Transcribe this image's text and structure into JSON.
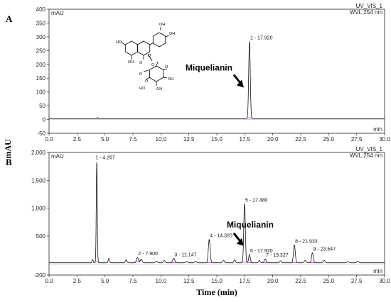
{
  "figure": {
    "ylabel": "mAU",
    "xlabel": "Time (min)"
  },
  "chart_data": [
    {
      "type": "line",
      "panel_label": "A",
      "unit_top_left": "mAU",
      "unit_bottom_right": "min",
      "header_line1": "UV_VIS_1",
      "header_line2": "WVL:254 nm",
      "xlim": [
        0.0,
        30.0
      ],
      "ylim": [
        -50,
        400
      ],
      "x_ticks": [
        "0.0",
        "2.5",
        "5.0",
        "7.5",
        "10.0",
        "12.5",
        "15.0",
        "17.5",
        "20.0",
        "22.5",
        "25.0",
        "27.5",
        "30.0"
      ],
      "y_ticks": [
        {
          "value": -50,
          "label": "-50"
        },
        {
          "value": 0,
          "label": "0"
        },
        {
          "value": 50,
          "label": "50"
        },
        {
          "value": 100,
          "label": "100"
        },
        {
          "value": 150,
          "label": "150"
        },
        {
          "value": 200,
          "label": "200"
        },
        {
          "value": 250,
          "label": "250"
        },
        {
          "value": 300,
          "label": "300"
        },
        {
          "value": 350,
          "label": "350"
        },
        {
          "value": 400,
          "label": "400"
        }
      ],
      "baseline": 3,
      "peaks": [
        {
          "label": "1 - 17.920",
          "rt": 17.92,
          "height": 280,
          "width": 0.07
        }
      ],
      "minor_peaks": [
        {
          "rt": 4.35,
          "height": 5,
          "width": 0.03
        }
      ],
      "annotation": {
        "text": "Miquelianin",
        "rt": 17.92,
        "height": 280
      },
      "structure_labels": [
        "OH",
        "OH",
        "HO",
        "OH",
        "HO",
        "OH",
        "OH",
        "O",
        "O",
        "O",
        "O",
        "O",
        "O"
      ]
    },
    {
      "type": "line",
      "panel_label": "B",
      "unit_top_left": "mAU",
      "unit_bottom_right": "min",
      "header_line1": "UV_VIS_1",
      "header_line2": "WVL:254 nm",
      "xlim": [
        0.0,
        30.0
      ],
      "ylim": [
        -200,
        2000
      ],
      "x_ticks": [
        "0.0",
        "2.5",
        "5.0",
        "7.5",
        "10.0",
        "12.5",
        "15.0",
        "17.5",
        "20.0",
        "22.5",
        "25.0",
        "27.5",
        "30.0"
      ],
      "y_ticks": [
        {
          "value": -200,
          "label": "-200"
        },
        {
          "value": 500,
          "label": "500"
        },
        {
          "value": 1000,
          "label": "1,000"
        },
        {
          "value": 1500,
          "label": "1,500"
        },
        {
          "value": 2000,
          "label": "2,000"
        }
      ],
      "baseline": 20,
      "peaks": [
        {
          "label": "1 - 4.267",
          "rt": 4.267,
          "height": 1820,
          "width": 0.045
        },
        {
          "label": "2 - 7.900",
          "rt": 7.9,
          "height": 95,
          "width": 0.09
        },
        {
          "label": "3 - 11.147",
          "rt": 11.147,
          "height": 80,
          "width": 0.09
        },
        {
          "label": "4 - 14.320",
          "rt": 14.32,
          "height": 420,
          "width": 0.08
        },
        {
          "label": "5 - 17.480",
          "rt": 17.48,
          "height": 1060,
          "width": 0.07
        },
        {
          "label": "6 - 17.920",
          "rt": 17.92,
          "height": 150,
          "width": 0.07
        },
        {
          "label": "7 - 19.327",
          "rt": 19.327,
          "height": 70,
          "width": 0.08
        },
        {
          "label": "8 - 21.933",
          "rt": 21.933,
          "height": 320,
          "width": 0.08
        },
        {
          "label": "9 - 23.547",
          "rt": 23.547,
          "height": 180,
          "width": 0.08
        }
      ],
      "minor_peaks": [
        {
          "rt": 3.9,
          "height": 60,
          "width": 0.05
        },
        {
          "rt": 5.35,
          "height": 80,
          "width": 0.06
        },
        {
          "rt": 6.9,
          "height": 55,
          "width": 0.07
        },
        {
          "rt": 8.25,
          "height": 65,
          "width": 0.08
        },
        {
          "rt": 9.6,
          "height": 30,
          "width": 0.08
        },
        {
          "rt": 10.3,
          "height": 40,
          "width": 0.08
        },
        {
          "rt": 12.3,
          "height": 25,
          "width": 0.08
        },
        {
          "rt": 13.1,
          "height": 30,
          "width": 0.08
        },
        {
          "rt": 15.6,
          "height": 45,
          "width": 0.07
        },
        {
          "rt": 16.6,
          "height": 55,
          "width": 0.07
        },
        {
          "rt": 18.8,
          "height": 40,
          "width": 0.07
        },
        {
          "rt": 20.7,
          "height": 35,
          "width": 0.08
        },
        {
          "rt": 22.9,
          "height": 40,
          "width": 0.08
        },
        {
          "rt": 24.6,
          "height": 45,
          "width": 0.08
        },
        {
          "rt": 26.7,
          "height": 25,
          "width": 0.08
        },
        {
          "rt": 27.6,
          "height": 30,
          "width": 0.08
        }
      ],
      "annotation": {
        "text": "Miquelianin",
        "rt": 17.92,
        "height": 150
      }
    }
  ],
  "colors": {
    "trace": "#111111",
    "integration": "#d43fd0",
    "axis": "#222222"
  }
}
